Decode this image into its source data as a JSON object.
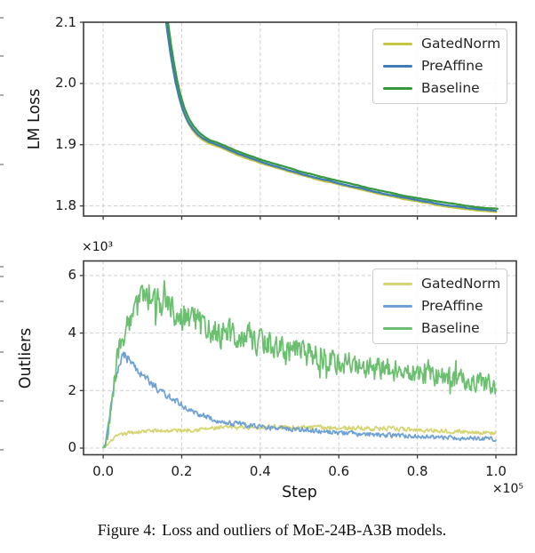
{
  "figure": {
    "caption_label": "Figure 4:",
    "caption_text": "Loss and outliers of MoE-24B-A3B models."
  },
  "style_colors": {
    "spine": "#3a3a3a",
    "grid": "#cfcfcf",
    "tick_text": "#1c1c1c",
    "edge_artifact": "#ababab"
  },
  "left_edge_artifact_tick_y": [
    19,
    62,
    106,
    184,
    299,
    310,
    338,
    395,
    450,
    505
  ],
  "chart_data": [
    {
      "type": "line",
      "title": "",
      "xlabel": "",
      "ylabel": "LM Loss",
      "xlim": [
        -0.05,
        1.052
      ],
      "ylim": [
        1.7835,
        2.1
      ],
      "xticks": [
        0.0,
        0.2,
        0.4,
        0.6,
        0.8,
        1.0
      ],
      "xtick_labels": [],
      "yticks": [
        1.8,
        1.9,
        2.0,
        2.1
      ],
      "ytick_labels": [
        "1.8",
        "1.9",
        "2.0",
        "2.1"
      ],
      "grid": true,
      "legend_position": "upper right",
      "base_anchors": [
        [
          0.158,
          2.115
        ],
        [
          0.163,
          2.09
        ],
        [
          0.169,
          2.062
        ],
        [
          0.176,
          2.034
        ],
        [
          0.184,
          2.006
        ],
        [
          0.193,
          1.981
        ],
        [
          0.203,
          1.959
        ],
        [
          0.214,
          1.9425
        ],
        [
          0.226,
          1.93
        ],
        [
          0.24,
          1.92
        ],
        [
          0.255,
          1.9125
        ],
        [
          0.27,
          1.907
        ],
        [
          0.285,
          1.9035
        ],
        [
          0.3,
          1.9
        ],
        [
          0.32,
          1.8945
        ],
        [
          0.34,
          1.889
        ],
        [
          0.36,
          1.884
        ],
        [
          0.385,
          1.8785
        ],
        [
          0.41,
          1.873
        ],
        [
          0.435,
          1.868
        ],
        [
          0.46,
          1.8635
        ],
        [
          0.49,
          1.858
        ],
        [
          0.52,
          1.8525
        ],
        [
          0.55,
          1.8475
        ],
        [
          0.58,
          1.843
        ],
        [
          0.61,
          1.8385
        ],
        [
          0.64,
          1.834
        ],
        [
          0.67,
          1.8295
        ],
        [
          0.7,
          1.825
        ],
        [
          0.73,
          1.821
        ],
        [
          0.76,
          1.817
        ],
        [
          0.79,
          1.8135
        ],
        [
          0.82,
          1.81
        ],
        [
          0.85,
          1.8065
        ],
        [
          0.88,
          1.8035
        ],
        [
          0.91,
          1.801
        ],
        [
          0.94,
          1.7985
        ],
        [
          0.97,
          1.7965
        ],
        [
          1.0,
          1.795
        ]
      ],
      "series": [
        {
          "name": "GatedNorm",
          "color": "#c6c73e",
          "y_offset": -0.0052,
          "x_shift": 0.001,
          "noise_amp": 0.001
        },
        {
          "name": "PreAffine",
          "color": "#3e7cb9",
          "y_offset": -0.0028,
          "x_shift": 0.0,
          "noise_amp": 0.0009
        },
        {
          "name": "Baseline",
          "color": "#36993f",
          "y_offset": 0.0,
          "x_shift": 0.004,
          "noise_amp": 0.001
        }
      ]
    },
    {
      "type": "line",
      "title": "",
      "xlabel": "Step",
      "ylabel": "Outliers",
      "x_scale_label": "×10⁵",
      "y_scale_label": "×10³",
      "xlim": [
        -0.05,
        1.052
      ],
      "ylim": [
        -0.232,
        6.507
      ],
      "xticks": [
        0.0,
        0.2,
        0.4,
        0.6,
        0.8,
        1.0
      ],
      "xtick_labels": [
        "0.0",
        "0.2",
        "0.4",
        "0.6",
        "0.8",
        "1.0"
      ],
      "yticks": [
        0,
        2,
        4,
        6
      ],
      "ytick_labels": [
        "0",
        "2",
        "4",
        "6"
      ],
      "grid": true,
      "legend_position": "upper right",
      "series": [
        {
          "name": "GatedNorm",
          "color": "#d6d573",
          "noise_amp": 0.055,
          "spikes": false,
          "anchors": [
            [
              0.0,
              0.02
            ],
            [
              0.01,
              0.1
            ],
            [
              0.02,
              0.25
            ],
            [
              0.03,
              0.38
            ],
            [
              0.05,
              0.48
            ],
            [
              0.07,
              0.54
            ],
            [
              0.1,
              0.58
            ],
            [
              0.13,
              0.6
            ],
            [
              0.16,
              0.6
            ],
            [
              0.2,
              0.62
            ],
            [
              0.25,
              0.66
            ],
            [
              0.3,
              0.7
            ],
            [
              0.35,
              0.73
            ],
            [
              0.4,
              0.75
            ],
            [
              0.45,
              0.73
            ],
            [
              0.5,
              0.71
            ],
            [
              0.55,
              0.72
            ],
            [
              0.6,
              0.7
            ],
            [
              0.65,
              0.69
            ],
            [
              0.7,
              0.68
            ],
            [
              0.75,
              0.66
            ],
            [
              0.8,
              0.63
            ],
            [
              0.85,
              0.61
            ],
            [
              0.9,
              0.58
            ],
            [
              0.95,
              0.55
            ],
            [
              1.0,
              0.52
            ]
          ]
        },
        {
          "name": "PreAffine",
          "color": "#6fa1d3",
          "noise_amp": 0.115,
          "spikes": false,
          "anchors": [
            [
              0.0,
              0.02
            ],
            [
              0.005,
              0.1
            ],
            [
              0.01,
              0.5
            ],
            [
              0.015,
              1.0
            ],
            [
              0.02,
              1.5
            ],
            [
              0.025,
              1.95
            ],
            [
              0.03,
              2.3
            ],
            [
              0.035,
              2.6
            ],
            [
              0.04,
              2.85
            ],
            [
              0.045,
              3.05
            ],
            [
              0.05,
              3.15
            ],
            [
              0.055,
              3.2
            ],
            [
              0.06,
              3.15
            ],
            [
              0.07,
              3.0
            ],
            [
              0.08,
              2.85
            ],
            [
              0.09,
              2.7
            ],
            [
              0.1,
              2.55
            ],
            [
              0.11,
              2.42
            ],
            [
              0.12,
              2.3
            ],
            [
              0.14,
              2.05
            ],
            [
              0.16,
              1.85
            ],
            [
              0.18,
              1.65
            ],
            [
              0.2,
              1.5
            ],
            [
              0.22,
              1.35
            ],
            [
              0.24,
              1.22
            ],
            [
              0.26,
              1.1
            ],
            [
              0.28,
              1.0
            ],
            [
              0.3,
              0.92
            ],
            [
              0.33,
              0.85
            ],
            [
              0.36,
              0.8
            ],
            [
              0.4,
              0.74
            ],
            [
              0.44,
              0.7
            ],
            [
              0.48,
              0.66
            ],
            [
              0.52,
              0.62
            ],
            [
              0.56,
              0.58
            ],
            [
              0.6,
              0.54
            ],
            [
              0.65,
              0.5
            ],
            [
              0.7,
              0.46
            ],
            [
              0.75,
              0.43
            ],
            [
              0.8,
              0.4
            ],
            [
              0.85,
              0.37
            ],
            [
              0.9,
              0.35
            ],
            [
              0.95,
              0.33
            ],
            [
              1.0,
              0.32
            ]
          ]
        },
        {
          "name": "Baseline",
          "color": "#6cbf70",
          "noise_amp": 0.4,
          "spikes": true,
          "anchors": [
            [
              0.0,
              0.02
            ],
            [
              0.005,
              0.05
            ],
            [
              0.01,
              0.35
            ],
            [
              0.015,
              0.8
            ],
            [
              0.02,
              1.4
            ],
            [
              0.025,
              2.0
            ],
            [
              0.03,
              2.5
            ],
            [
              0.035,
              3.0
            ],
            [
              0.04,
              3.5
            ],
            [
              0.045,
              3.8
            ],
            [
              0.05,
              3.9
            ],
            [
              0.055,
              4.05
            ],
            [
              0.06,
              4.2
            ],
            [
              0.07,
              4.45
            ],
            [
              0.08,
              4.8
            ],
            [
              0.09,
              5.1
            ],
            [
              0.1,
              5.45
            ],
            [
              0.105,
              5.7
            ],
            [
              0.11,
              5.55
            ],
            [
              0.12,
              5.3
            ],
            [
              0.13,
              5.15
            ],
            [
              0.14,
              5.05
            ],
            [
              0.15,
              5.0
            ],
            [
              0.16,
              4.95
            ],
            [
              0.18,
              4.8
            ],
            [
              0.2,
              4.65
            ],
            [
              0.22,
              4.5
            ],
            [
              0.24,
              4.4
            ],
            [
              0.26,
              4.3
            ],
            [
              0.28,
              4.15
            ],
            [
              0.3,
              4.0
            ],
            [
              0.33,
              3.9
            ],
            [
              0.36,
              3.8
            ],
            [
              0.39,
              3.72
            ],
            [
              0.42,
              3.62
            ],
            [
              0.45,
              3.5
            ],
            [
              0.48,
              3.42
            ],
            [
              0.51,
              3.32
            ],
            [
              0.54,
              3.22
            ],
            [
              0.57,
              3.12
            ],
            [
              0.6,
              3.02
            ],
            [
              0.63,
              2.95
            ],
            [
              0.66,
              2.88
            ],
            [
              0.69,
              2.82
            ],
            [
              0.72,
              2.76
            ],
            [
              0.75,
              2.7
            ],
            [
              0.78,
              2.63
            ],
            [
              0.81,
              2.57
            ],
            [
              0.84,
              2.5
            ],
            [
              0.87,
              2.44
            ],
            [
              0.9,
              2.38
            ],
            [
              0.93,
              2.32
            ],
            [
              0.96,
              2.27
            ],
            [
              1.0,
              2.2
            ]
          ]
        }
      ]
    }
  ]
}
